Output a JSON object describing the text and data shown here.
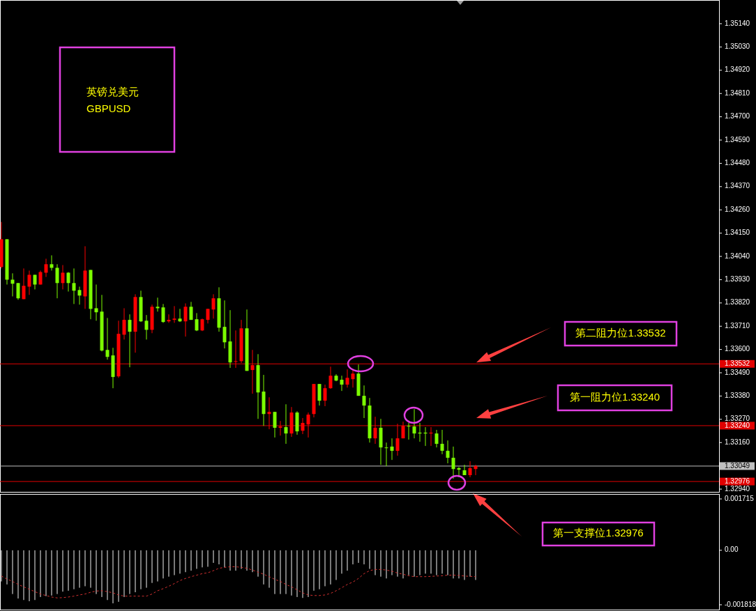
{
  "chart_data": [
    {
      "type": "candlestick",
      "tick_labels": "y",
      "categories": [
        null,
        null,
        null,
        null,
        null,
        null,
        null,
        null,
        null,
        null,
        null,
        null,
        null,
        null,
        null,
        null,
        null,
        null,
        null,
        null,
        null,
        null,
        null,
        null,
        null,
        null,
        null,
        null,
        null,
        null,
        null,
        null,
        null,
        null,
        null,
        null,
        null,
        null,
        null,
        null,
        null,
        null,
        null,
        null,
        null,
        null,
        null,
        null,
        null,
        null,
        null,
        null,
        null,
        null,
        null,
        null,
        null,
        null,
        null,
        null,
        null,
        null,
        null,
        null,
        null,
        null,
        null,
        null,
        null,
        null,
        null,
        null,
        null,
        null,
        null,
        null,
        null,
        null,
        null,
        null,
        null,
        null,
        null,
        null,
        null,
        null,
        null,
        null,
        null,
        null,
        null,
        null,
        null,
        null,
        null,
        null,
        null,
        null,
        null,
        null,
        null,
        null,
        null,
        null,
        null,
        null,
        null,
        null,
        null,
        null,
        null,
        null,
        null,
        null,
        null,
        null,
        null,
        null,
        null,
        null,
        null,
        null,
        null,
        null,
        null,
        null,
        null,
        null,
        null
      ],
      "ohlc": [
        [
          1.34121,
          1.34203,
          1.33983,
          1.3399
        ],
        [
          1.3393,
          1.34121,
          1.33907,
          1.34121
        ],
        [
          1.33911,
          1.3396,
          1.33851,
          1.3393
        ],
        [
          1.33842,
          1.33914,
          1.33835,
          1.33914
        ],
        [
          1.33901,
          1.33983,
          1.33838,
          1.33838
        ],
        [
          1.33953,
          1.33973,
          1.33858,
          1.33897
        ],
        [
          1.33907,
          1.33953,
          1.33884,
          1.33953
        ],
        [
          1.33966,
          1.33973,
          1.33907,
          1.33907
        ],
        [
          1.34003,
          1.34029,
          1.33943,
          1.33963
        ],
        [
          1.33986,
          1.34045,
          1.33973,
          1.34003
        ],
        [
          1.33914,
          1.34003,
          1.33842,
          1.33986
        ],
        [
          1.33963,
          1.33999,
          1.33884,
          1.33914
        ],
        [
          1.33914,
          1.33966,
          1.33874,
          1.33963
        ],
        [
          1.33878,
          1.33983,
          1.33815,
          1.33914
        ],
        [
          1.33855,
          1.33897,
          1.33812,
          1.33881
        ],
        [
          1.33973,
          1.34088,
          1.33792,
          1.33851
        ],
        [
          1.33792,
          1.33976,
          1.33743,
          1.33976
        ],
        [
          1.33776,
          1.33907,
          1.33736,
          1.33795
        ],
        [
          1.33595,
          1.33858,
          1.33591,
          1.33779
        ],
        [
          1.33565,
          1.33749,
          1.33552,
          1.33598
        ],
        [
          1.3347,
          1.33608,
          1.33417,
          1.33572
        ],
        [
          1.33674,
          1.33736,
          1.33466,
          1.33473
        ],
        [
          1.3374,
          1.33795,
          1.33647,
          1.3367
        ],
        [
          1.33684,
          1.33766,
          1.33516,
          1.3374
        ],
        [
          1.33848,
          1.33861,
          1.33585,
          1.33684
        ],
        [
          1.33733,
          1.33878,
          1.3373,
          1.33848
        ],
        [
          1.33693,
          1.33763,
          1.33647,
          1.33736
        ],
        [
          1.33802,
          1.33812,
          1.33677,
          1.33693
        ],
        [
          1.33795,
          1.33845,
          1.33779,
          1.33802
        ],
        [
          1.3373,
          1.33815,
          1.33726,
          1.33799
        ],
        [
          1.3374,
          1.33766,
          1.33726,
          1.33733
        ],
        [
          1.33746,
          1.33805,
          1.33726,
          1.3374
        ],
        [
          1.33733,
          1.33792,
          1.3373,
          1.33746
        ],
        [
          1.33802,
          1.33818,
          1.33661,
          1.33733
        ],
        [
          1.3374,
          1.33825,
          1.3374,
          1.33802
        ],
        [
          1.3369,
          1.33772,
          1.33687,
          1.33743
        ],
        [
          1.33743,
          1.33746,
          1.33687,
          1.3369
        ],
        [
          1.33792,
          1.33792,
          1.33723,
          1.3374
        ],
        [
          1.33842,
          1.33861,
          1.33746,
          1.33789
        ],
        [
          1.33703,
          1.33894,
          1.33684,
          1.33842
        ],
        [
          1.33634,
          1.33832,
          1.33605,
          1.33707
        ],
        [
          1.33539,
          1.33786,
          1.33513,
          1.33638
        ],
        [
          1.33545,
          1.3369,
          1.33513,
          1.33542
        ],
        [
          1.337,
          1.3374,
          1.33536,
          1.33545
        ],
        [
          1.33499,
          1.33789,
          1.33499,
          1.337
        ],
        [
          1.33526,
          1.33598,
          1.33391,
          1.33503
        ],
        [
          1.33397,
          1.33578,
          1.33272,
          1.33526
        ],
        [
          1.33295,
          1.3348,
          1.33239,
          1.33401
        ],
        [
          1.33305,
          1.33374,
          1.33223,
          1.33295
        ],
        [
          1.3323,
          1.33305,
          1.33184,
          1.33305
        ],
        [
          1.33236,
          1.33262,
          1.33193,
          1.3323
        ],
        [
          1.33203,
          1.33341,
          1.33154,
          1.33233
        ],
        [
          1.33302,
          1.33328,
          1.33187,
          1.33203
        ],
        [
          1.33213,
          1.33308,
          1.33197,
          1.33302
        ],
        [
          1.33253,
          1.33276,
          1.332,
          1.33216
        ],
        [
          1.33292,
          1.33302,
          1.33184,
          1.33246
        ],
        [
          1.33437,
          1.33437,
          1.33279,
          1.33295
        ],
        [
          1.33358,
          1.33437,
          1.33335,
          1.33437
        ],
        [
          1.33417,
          1.33434,
          1.33332,
          1.33358
        ],
        [
          1.33476,
          1.33519,
          1.33414,
          1.33417
        ],
        [
          1.33453,
          1.33483,
          1.3345,
          1.33476
        ],
        [
          1.33434,
          1.33476,
          1.33404,
          1.33457
        ],
        [
          1.33466,
          1.33506,
          1.3342,
          1.33434
        ],
        [
          1.33486,
          1.33509,
          1.3342,
          1.3346
        ],
        [
          1.33381,
          1.33529,
          1.33381,
          1.33486
        ],
        [
          1.33335,
          1.3343,
          1.33276,
          1.33381
        ],
        [
          1.3318,
          1.33371,
          1.3316,
          1.33335
        ],
        [
          1.3323,
          1.33282,
          1.33154,
          1.3318
        ],
        [
          1.33137,
          1.33272,
          1.33055,
          1.3323
        ],
        [
          1.33134,
          1.3316,
          1.33049,
          1.33137
        ],
        [
          1.33121,
          1.3318,
          1.33078,
          1.33141
        ],
        [
          1.3318,
          1.33249,
          1.33098,
          1.33121
        ],
        [
          1.33239,
          1.33259,
          1.3318,
          1.3318
        ],
        [
          1.33236,
          1.33253,
          1.33174,
          1.33239
        ],
        [
          1.33203,
          1.33318,
          1.3318,
          1.33236
        ],
        [
          1.33203,
          1.33253,
          1.33164,
          1.33207
        ],
        [
          1.33203,
          1.33233,
          1.33144,
          1.33207
        ],
        [
          1.33207,
          1.33233,
          1.33144,
          1.33203
        ],
        [
          1.33154,
          1.3322,
          1.33137,
          1.33203
        ],
        [
          1.33121,
          1.3322,
          1.33105,
          1.33154
        ],
        [
          1.33088,
          1.3317,
          1.33062,
          1.33121
        ],
        [
          1.33035,
          1.33141,
          1.32989,
          1.33088
        ],
        [
          1.33032,
          1.33045,
          1.32996,
          1.33039
        ],
        [
          1.33006,
          1.33055,
          1.33006,
          1.33029
        ],
        [
          1.33039,
          1.33072,
          1.32996,
          1.33006
        ],
        [
          1.33049,
          1.33055,
          1.33006,
          1.33035
        ],
        null,
        null,
        null,
        null,
        null,
        null,
        null,
        null,
        null,
        null,
        null,
        null,
        null,
        null,
        null,
        null,
        null,
        null,
        null,
        null,
        null,
        null,
        null,
        null,
        null,
        null,
        null,
        null,
        null,
        null,
        null,
        null,
        null,
        null,
        null,
        null,
        null,
        null,
        null,
        null,
        null,
        null,
        null
      ],
      "colors": [
        "#ff0000",
        "#7cfc00",
        "#7cfc00",
        "#7cfc00",
        "#ff0000",
        "#ff0000",
        "#7cfc00",
        "#ff0000",
        "#ff0000",
        "#7cfc00",
        "#7cfc00",
        "#ff0000",
        "#7cfc00",
        "#7cfc00",
        "#7cfc00",
        "#ff0000",
        "#7cfc00",
        "#7cfc00",
        "#7cfc00",
        "#7cfc00",
        "#7cfc00",
        "#ff0000",
        "#ff0000",
        "#7cfc00",
        "#ff0000",
        "#7cfc00",
        "#7cfc00",
        "#ff0000",
        "#7cfc00",
        "#7cfc00",
        "#ff0000",
        "#ff0000",
        "#7cfc00",
        "#ff0000",
        "#7cfc00",
        "#7cfc00",
        "#ff0000",
        "#ff0000",
        "#ff0000",
        "#7cfc00",
        "#7cfc00",
        "#7cfc00",
        "#ff0000",
        "#ff0000",
        "#7cfc00",
        "#ff0000",
        "#7cfc00",
        "#7cfc00",
        "#ff0000",
        "#7cfc00",
        "#ff0000",
        "#7cfc00",
        "#ff0000",
        "#7cfc00",
        "#ff0000",
        "#ff0000",
        "#ff0000",
        "#7cfc00",
        "#ff0000",
        "#ff0000",
        "#7cfc00",
        "#7cfc00",
        "#ff0000",
        "#ff0000",
        "#7cfc00",
        "#7cfc00",
        "#7cfc00",
        "#ff0000",
        "#7cfc00",
        "#7cfc00",
        "#7cfc00",
        "#ff0000",
        "#ff0000",
        "#7cfc00",
        "#7cfc00",
        "#7cfc00",
        "#7cfc00",
        "#ff0000",
        "#7cfc00",
        "#7cfc00",
        "#7cfc00",
        "#7cfc00",
        "#7cfc00",
        "#7cfc00",
        "#ff0000",
        "#ff0000",
        null,
        null,
        null,
        null,
        null,
        null,
        null,
        null,
        null,
        null,
        null,
        null,
        null,
        null,
        null,
        null,
        null,
        null,
        null,
        null,
        null,
        null,
        null,
        null,
        null,
        null,
        null,
        null,
        null,
        null,
        null,
        null,
        null,
        null,
        null,
        null,
        null,
        null,
        null,
        null,
        null,
        null,
        null
      ],
      "ylim": [
        1.32927,
        1.35252
      ],
      "yticks": [
        {
          "value": 1.3294,
          "label": "1.32940"
        },
        {
          "value": 1.3316,
          "label": "1.33160"
        },
        {
          "value": 1.3327,
          "label": "1.33270"
        },
        {
          "value": 1.3338,
          "label": "1.33380"
        },
        {
          "value": 1.3349,
          "label": "1.33490"
        },
        {
          "value": 1.336,
          "label": "1.33600"
        },
        {
          "value": 1.3371,
          "label": "1.33710"
        },
        {
          "value": 1.3382,
          "label": "1.33820"
        },
        {
          "value": 1.3393,
          "label": "1.33930"
        },
        {
          "value": 1.3404,
          "label": "1.34040"
        },
        {
          "value": 1.3415,
          "label": "1.34150"
        },
        {
          "value": 1.3426,
          "label": "1.34260"
        },
        {
          "value": 1.3437,
          "label": "1.34370"
        },
        {
          "value": 1.3448,
          "label": "1.34480"
        },
        {
          "value": 1.3459,
          "label": "1.34590"
        },
        {
          "value": 1.347,
          "label": "1.34700"
        },
        {
          "value": 1.3481,
          "label": "1.34810"
        },
        {
          "value": 1.3492,
          "label": "1.34920"
        },
        {
          "value": 1.3503,
          "label": "1.35030"
        },
        {
          "value": 1.3514,
          "label": "1.35140"
        }
      ],
      "ref_lines": [
        {
          "axis": "y",
          "value": 1.33532,
          "label": "1.33532",
          "color": "#e00000"
        },
        {
          "axis": "y",
          "value": 1.3324,
          "label": "1.33240",
          "color": "#e00000"
        },
        {
          "axis": "y",
          "value": 1.33049,
          "label": "1.33049",
          "color": "#c0c0c0"
        },
        {
          "axis": "y",
          "value": 1.32976,
          "label": "1.32976",
          "color": "#e00000"
        }
      ],
      "annotations": [
        "英镑兑美元\nGBPUSD",
        {
          "text": "第二阻力位1.33532",
          "y": 1.33532
        },
        {
          "text": "第一阻力位1.33240",
          "y": 1.3324
        },
        "第一支撑位1.32976"
      ]
    },
    {
      "type": "bar",
      "tick_labels": "y",
      "categories": [
        null,
        null,
        null,
        null,
        null,
        null,
        null,
        null,
        null,
        null,
        null,
        null,
        null,
        null,
        null,
        null,
        null,
        null,
        null,
        null,
        null,
        null,
        null,
        null,
        null,
        null,
        null,
        null,
        null,
        null,
        null,
        null,
        null,
        null,
        null,
        null,
        null,
        null,
        null,
        null,
        null,
        null,
        null,
        null,
        null,
        null,
        null,
        null,
        null,
        null,
        null,
        null,
        null,
        null,
        null,
        null,
        null,
        null,
        null,
        null,
        null,
        null,
        null,
        null,
        null,
        null,
        null,
        null,
        null,
        null,
        null,
        null,
        null,
        null,
        null,
        null,
        null,
        null,
        null,
        null,
        null,
        null,
        null,
        null,
        null,
        null,
        null,
        null,
        null,
        null,
        null,
        null,
        null,
        null,
        null,
        null,
        null,
        null,
        null,
        null,
        null,
        null,
        null,
        null,
        null,
        null,
        null,
        null,
        null,
        null,
        null,
        null,
        null,
        null,
        null,
        null,
        null,
        null,
        null,
        null,
        null,
        null,
        null,
        null,
        null,
        null,
        null,
        null,
        null
      ],
      "ylim": [
        -0.00198,
        0.00188
      ],
      "yticks": [
        0.001715,
        {
          "value": 0,
          "label": "0.00"
        },
        -0.001818
      ],
      "series": [
        {
          "type": "bar",
          "color": "#c8c8c8",
          "values": [
            -0.00104,
            -0.00114,
            -0.00146,
            -0.00161,
            -0.00166,
            -0.0017,
            -0.00166,
            -0.00156,
            -0.00153,
            -0.00151,
            -0.00146,
            -0.00138,
            -0.00135,
            -0.0013,
            -0.00125,
            -0.0012,
            -0.00125,
            -0.00146,
            -0.00156,
            -0.00166,
            -0.00177,
            -0.00172,
            -0.00156,
            -0.00146,
            -0.0014,
            -0.0013,
            -0.00125,
            -0.00109,
            -0.00104,
            -0.00094,
            -0.00088,
            -0.00083,
            -0.00078,
            -0.00073,
            -0.00068,
            -0.00062,
            -0.00057,
            -0.00055,
            -0.00042,
            -0.00047,
            -0.00057,
            -0.00068,
            -0.00068,
            -0.00062,
            -0.00068,
            -0.00073,
            -0.00088,
            -0.00114,
            -0.00125,
            -0.00146,
            -0.00146,
            -0.00146,
            -0.00151,
            -0.00156,
            -0.00159,
            -0.00156,
            -0.00135,
            -0.0013,
            -0.0012,
            -0.00114,
            -0.00099,
            -0.00078,
            -0.00068,
            -0.00047,
            -0.00042,
            -0.00047,
            -0.00062,
            -0.00083,
            -0.00088,
            -0.00094,
            -0.00083,
            -0.00088,
            -0.00094,
            -0.00083,
            -0.00088,
            -0.00083,
            -0.00078,
            -0.00078,
            -0.00083,
            -0.00078,
            -0.00083,
            -0.00094,
            -0.00094,
            -0.00099,
            -0.00088,
            -0.00099,
            null,
            null,
            null,
            null,
            null,
            null,
            null,
            null,
            null,
            null,
            null,
            null,
            null,
            null,
            null,
            null,
            null,
            null,
            null,
            null,
            null,
            null,
            null,
            null,
            null,
            null,
            null,
            null,
            null,
            null,
            null,
            null,
            null,
            null,
            null,
            null,
            null,
            null,
            null,
            null,
            null,
            null,
            null
          ]
        },
        {
          "type": "line",
          "color": "#d03030",
          "line_style": "dashed",
          "values": [
            -0.00086,
            -0.00096,
            -0.00104,
            -0.00114,
            -0.00122,
            -0.0013,
            -0.00138,
            -0.00146,
            -0.00151,
            -0.00156,
            -0.00159,
            -0.00158,
            -0.00156,
            -0.00153,
            -0.00149,
            -0.00146,
            -0.0014,
            -0.00136,
            -0.00135,
            -0.00138,
            -0.00142,
            -0.00149,
            -0.00153,
            -0.00153,
            -0.00153,
            -0.00153,
            -0.00153,
            -0.00146,
            -0.00135,
            -0.00128,
            -0.0012,
            -0.00111,
            -0.00101,
            -0.00094,
            -0.00088,
            -0.00083,
            -0.00078,
            -0.00075,
            -0.00068,
            -0.0006,
            -0.00057,
            -0.00055,
            -0.00055,
            -0.00057,
            -0.0006,
            -0.00066,
            -0.00073,
            -0.0008,
            -0.00088,
            -0.00097,
            -0.00104,
            -0.00114,
            -0.00122,
            -0.00132,
            -0.00142,
            -0.00149,
            -0.00151,
            -0.00151,
            -0.00149,
            -0.00144,
            -0.00135,
            -0.00125,
            -0.00114,
            -0.00106,
            -0.00094,
            -0.00078,
            -0.00068,
            -0.00064,
            -0.00064,
            -0.00066,
            -0.0007,
            -0.00076,
            -0.0008,
            -0.00085,
            -0.00088,
            -0.00088,
            -0.00088,
            -0.00087,
            -0.00086,
            -0.00085,
            -0.00083,
            -0.00083,
            -0.00084,
            -0.00086,
            -0.00087,
            -0.00088,
            null,
            null,
            null,
            null,
            null,
            null,
            null,
            null,
            null,
            null,
            null,
            null,
            null,
            null,
            null,
            null,
            null,
            null,
            null,
            null,
            null,
            null,
            null,
            null,
            null,
            null,
            null,
            null,
            null,
            null,
            null,
            null,
            null,
            null,
            null,
            null,
            null,
            null,
            null,
            null,
            null,
            null,
            null
          ]
        }
      ]
    }
  ]
}
